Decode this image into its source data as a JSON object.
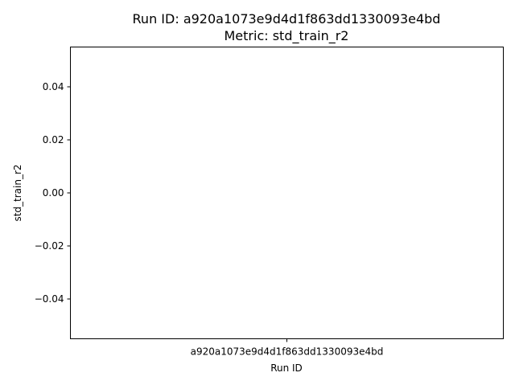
{
  "chart_data": {
    "type": "bar",
    "title_line1": "Run ID: a920a1073e9d4d1f863dd1330093e4bd",
    "title_line2": "Metric: std_train_r2",
    "xlabel": "Run ID",
    "ylabel": "std_train_r2",
    "categories": [
      "a920a1073e9d4d1f863dd1330093e4bd"
    ],
    "values": [
      null
    ],
    "ylim": [
      -0.055,
      0.055
    ],
    "yticks": [
      0.04,
      0.02,
      0.0,
      -0.02,
      -0.04
    ],
    "ytick_labels": [
      "0.04",
      "0.02",
      "0.00",
      "−0.02",
      "−0.04"
    ],
    "grid": false,
    "legend": "none"
  }
}
